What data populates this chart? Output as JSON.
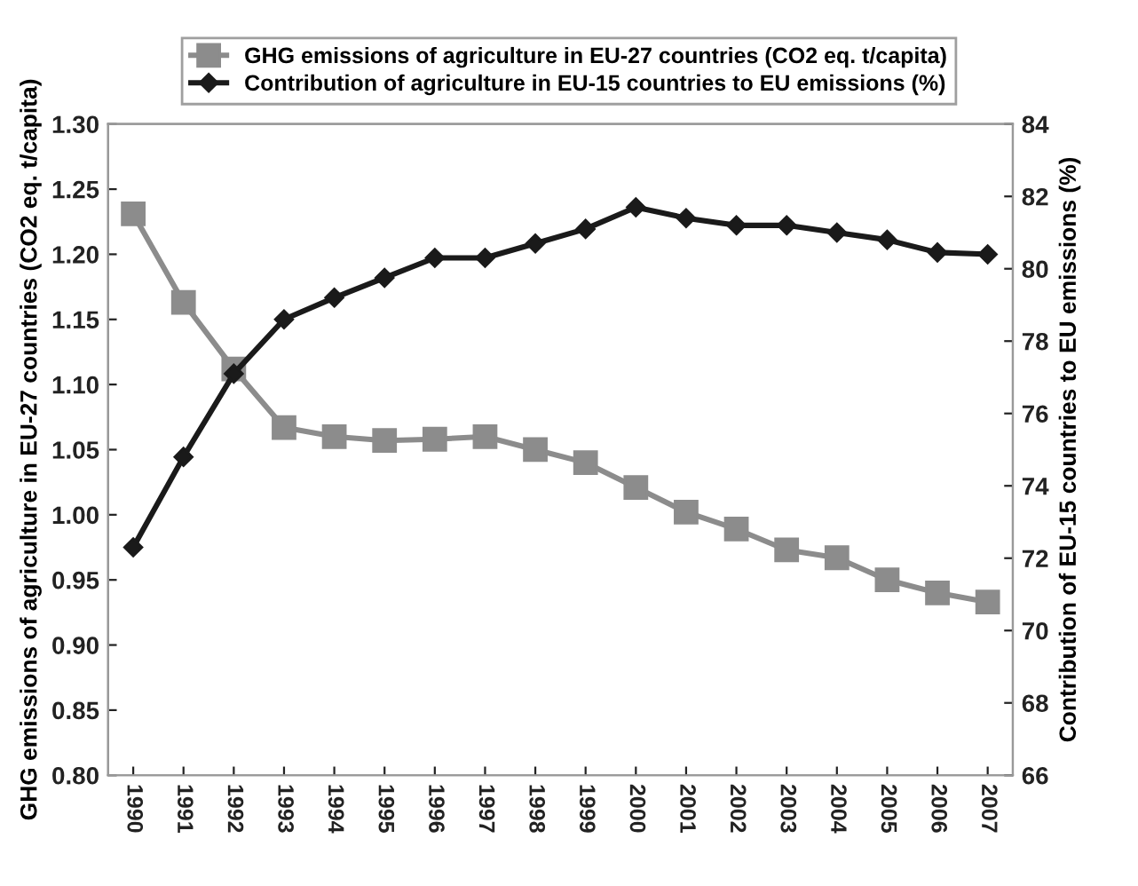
{
  "chart_data": {
    "type": "line",
    "categories": [
      "1990",
      "1991",
      "1992",
      "1993",
      "1994",
      "1995",
      "1996",
      "1997",
      "1998",
      "1999",
      "2000",
      "2001",
      "2002",
      "2003",
      "2004",
      "2005",
      "2006",
      "2007"
    ],
    "series": [
      {
        "name": "GHG emissions of agriculture in EU-27 countries (CO2 eq. t/capita)",
        "color": "#8c8c8c",
        "marker": "square",
        "values": [
          1.231,
          1.163,
          1.112,
          1.067,
          1.06,
          1.057,
          1.058,
          1.06,
          1.05,
          1.04,
          1.021,
          1.002,
          0.989,
          0.973,
          0.967,
          0.95,
          0.94,
          0.933
        ]
      },
      {
        "name": "Contribution of agriculture in EU-15 countries to EU emissions (%)",
        "color": "#1a1a1a",
        "marker": "diamond",
        "axis": "y2",
        "values": [
          72.3,
          74.8,
          77.1,
          78.6,
          79.2,
          79.75,
          80.3,
          80.3,
          80.7,
          81.1,
          81.7,
          81.4,
          81.2,
          81.2,
          81.0,
          80.8,
          80.45,
          80.4
        ]
      }
    ],
    "ylabel": "GHG emissions of agriculture in EU-27 countries (CO2 eq. t/capita)",
    "y2label": "Contribution of EU-15 countries to EU emissions (%)",
    "ylim": [
      0.8,
      1.3
    ],
    "yticks": [
      {
        "value": 0.8,
        "label": "0.80"
      },
      {
        "value": 0.85,
        "label": "0.85"
      },
      {
        "value": 0.9,
        "label": "0.90"
      },
      {
        "value": 0.95,
        "label": "0.95"
      },
      {
        "value": 1.0,
        "label": "1.00"
      },
      {
        "value": 1.05,
        "label": "1.05"
      },
      {
        "value": 1.1,
        "label": "1.10"
      },
      {
        "value": 1.15,
        "label": "1.15"
      },
      {
        "value": 1.2,
        "label": "1.20"
      },
      {
        "value": 1.25,
        "label": "1.25"
      },
      {
        "value": 1.3,
        "label": "1.30"
      }
    ],
    "y2lim": [
      66,
      84
    ],
    "y2ticks": [
      66,
      68,
      70,
      72,
      74,
      76,
      78,
      80,
      82,
      84
    ],
    "grid": false,
    "legend": "top",
    "line_style": "solid"
  }
}
